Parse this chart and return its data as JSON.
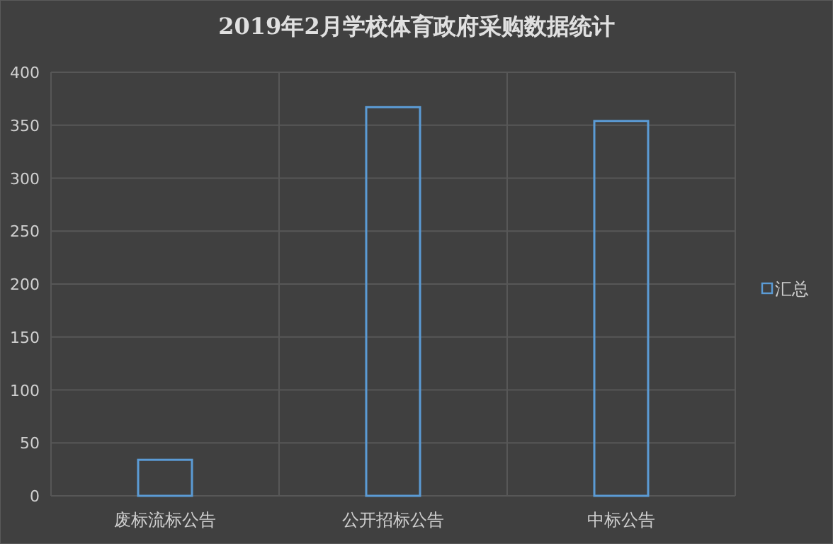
{
  "chart_data": {
    "type": "bar",
    "title": "2019年2月学校体育政府采购数据统计",
    "categories": [
      "废标流标公告",
      "公开招标公告",
      "中标公告"
    ],
    "series": [
      {
        "name": "汇总",
        "color": "#5b9bd5",
        "values": [
          34,
          367,
          354
        ]
      }
    ],
    "ylim": [
      0,
      400
    ],
    "yticks": [
      0,
      50,
      100,
      150,
      200,
      250,
      300,
      350,
      400
    ],
    "grid": true,
    "legend": "right"
  }
}
